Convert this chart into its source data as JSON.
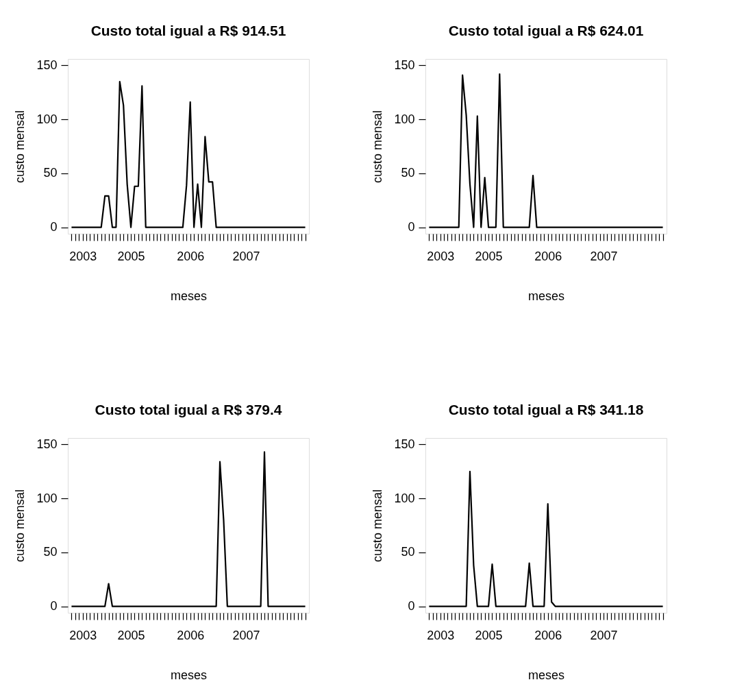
{
  "chart_data": [
    {
      "type": "line",
      "title": "Custo total igual a R$ 914.51",
      "xlabel": "meses",
      "ylabel": "custo mensal",
      "grid": false,
      "marker": "none",
      "line_style": "solid",
      "ylim": [
        -6,
        156
      ],
      "yticks": [
        0,
        50,
        100,
        150
      ],
      "categories": [
        null,
        null,
        null,
        "2003",
        null,
        null,
        null,
        null,
        null,
        null,
        null,
        null,
        null,
        null,
        null,
        null,
        "2005",
        null,
        null,
        null,
        null,
        null,
        null,
        null,
        null,
        null,
        null,
        null,
        null,
        null,
        null,
        null,
        "2006",
        null,
        null,
        null,
        null,
        null,
        null,
        null,
        null,
        null,
        null,
        null,
        null,
        null,
        null,
        "2007",
        null,
        null,
        null,
        null,
        null,
        null,
        null,
        null,
        null,
        null,
        null,
        null,
        null,
        null,
        null,
        null
      ],
      "series": [
        {
          "color": "#000000",
          "values": [
            0,
            0,
            0,
            0,
            0,
            0,
            0,
            0,
            0,
            29,
            29,
            0,
            0,
            135,
            113,
            40,
            0,
            38,
            38,
            131,
            0,
            0,
            0,
            0,
            0,
            0,
            0,
            0,
            0,
            0,
            0,
            39,
            116,
            0,
            40,
            0,
            84,
            42,
            42,
            0,
            0,
            0,
            0,
            0,
            0,
            0,
            0,
            0,
            0,
            0,
            0,
            0,
            0,
            0,
            0,
            0,
            0,
            0,
            0,
            0,
            0,
            0,
            0,
            0
          ]
        }
      ]
    },
    {
      "type": "line",
      "title": "Custo total igual a R$ 624.01",
      "xlabel": "meses",
      "ylabel": "custo mensal",
      "grid": false,
      "marker": "none",
      "line_style": "solid",
      "ylim": [
        -6,
        156
      ],
      "yticks": [
        0,
        50,
        100,
        150
      ],
      "categories": [
        null,
        null,
        null,
        "2003",
        null,
        null,
        null,
        null,
        null,
        null,
        null,
        null,
        null,
        null,
        null,
        null,
        "2005",
        null,
        null,
        null,
        null,
        null,
        null,
        null,
        null,
        null,
        null,
        null,
        null,
        null,
        null,
        null,
        "2006",
        null,
        null,
        null,
        null,
        null,
        null,
        null,
        null,
        null,
        null,
        null,
        null,
        null,
        null,
        "2007",
        null,
        null,
        null,
        null,
        null,
        null,
        null,
        null,
        null,
        null,
        null,
        null,
        null,
        null,
        null,
        null
      ],
      "series": [
        {
          "color": "#000000",
          "values": [
            0,
            0,
            0,
            0,
            0,
            0,
            0,
            0,
            0,
            141,
            104,
            40,
            0,
            103,
            0,
            46,
            0,
            0,
            0,
            142,
            0,
            0,
            0,
            0,
            0,
            0,
            0,
            0,
            48,
            0,
            0,
            0,
            0,
            0,
            0,
            0,
            0,
            0,
            0,
            0,
            0,
            0,
            0,
            0,
            0,
            0,
            0,
            0,
            0,
            0,
            0,
            0,
            0,
            0,
            0,
            0,
            0,
            0,
            0,
            0,
            0,
            0,
            0,
            0
          ]
        }
      ]
    },
    {
      "type": "line",
      "title": "Custo total igual a R$ 379.4",
      "xlabel": "meses",
      "ylabel": "custo mensal",
      "grid": false,
      "marker": "none",
      "line_style": "solid",
      "ylim": [
        -6,
        156
      ],
      "yticks": [
        0,
        50,
        100,
        150
      ],
      "categories": [
        null,
        null,
        null,
        "2003",
        null,
        null,
        null,
        null,
        null,
        null,
        null,
        null,
        null,
        null,
        null,
        null,
        "2005",
        null,
        null,
        null,
        null,
        null,
        null,
        null,
        null,
        null,
        null,
        null,
        null,
        null,
        null,
        null,
        "2006",
        null,
        null,
        null,
        null,
        null,
        null,
        null,
        null,
        null,
        null,
        null,
        null,
        null,
        null,
        "2007",
        null,
        null,
        null,
        null,
        null,
        null,
        null,
        null,
        null,
        null,
        null,
        null,
        null,
        null,
        null,
        null
      ],
      "series": [
        {
          "color": "#000000",
          "values": [
            0,
            0,
            0,
            0,
            0,
            0,
            0,
            0,
            0,
            0,
            21,
            0,
            0,
            0,
            0,
            0,
            0,
            0,
            0,
            0,
            0,
            0,
            0,
            0,
            0,
            0,
            0,
            0,
            0,
            0,
            0,
            0,
            0,
            0,
            0,
            0,
            0,
            0,
            0,
            0,
            134,
            80,
            0,
            0,
            0,
            0,
            0,
            0,
            0,
            0,
            0,
            0,
            143,
            0,
            0,
            0,
            0,
            0,
            0,
            0,
            0,
            0,
            0,
            0
          ]
        }
      ]
    },
    {
      "type": "line",
      "title": "Custo total igual a R$ 341.18",
      "xlabel": "meses",
      "ylabel": "custo mensal",
      "grid": false,
      "marker": "none",
      "line_style": "solid",
      "ylim": [
        -6,
        156
      ],
      "yticks": [
        0,
        50,
        100,
        150
      ],
      "categories": [
        null,
        null,
        null,
        "2003",
        null,
        null,
        null,
        null,
        null,
        null,
        null,
        null,
        null,
        null,
        null,
        null,
        "2005",
        null,
        null,
        null,
        null,
        null,
        null,
        null,
        null,
        null,
        null,
        null,
        null,
        null,
        null,
        null,
        "2006",
        null,
        null,
        null,
        null,
        null,
        null,
        null,
        null,
        null,
        null,
        null,
        null,
        null,
        null,
        "2007",
        null,
        null,
        null,
        null,
        null,
        null,
        null,
        null,
        null,
        null,
        null,
        null,
        null,
        null,
        null,
        null
      ],
      "series": [
        {
          "color": "#000000",
          "values": [
            0,
            0,
            0,
            0,
            0,
            0,
            0,
            0,
            0,
            0,
            0,
            125,
            38,
            0,
            0,
            0,
            0,
            39,
            0,
            0,
            0,
            0,
            0,
            0,
            0,
            0,
            0,
            40,
            0,
            0,
            0,
            0,
            95,
            4,
            0,
            0,
            0,
            0,
            0,
            0,
            0,
            0,
            0,
            0,
            0,
            0,
            0,
            0,
            0,
            0,
            0,
            0,
            0,
            0,
            0,
            0,
            0,
            0,
            0,
            0,
            0,
            0,
            0,
            0
          ]
        }
      ]
    }
  ]
}
